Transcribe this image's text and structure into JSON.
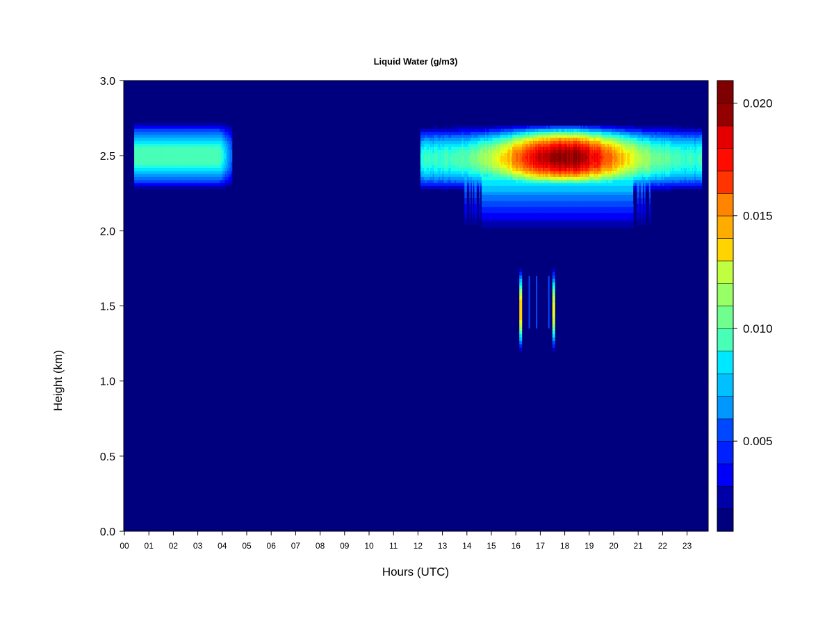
{
  "chart_data": {
    "type": "heatmap",
    "title": "Liquid Water (g/m3)",
    "xlabel": "Hours (UTC)",
    "ylabel": "Height (km)",
    "x_ticks": [
      "00",
      "01",
      "02",
      "03",
      "04",
      "05",
      "06",
      "07",
      "08",
      "09",
      "10",
      "11",
      "12",
      "13",
      "14",
      "15",
      "16",
      "17",
      "18",
      "19",
      "20",
      "21",
      "22",
      "23"
    ],
    "y_ticks": [
      "0.0",
      "0.5",
      "1.0",
      "1.5",
      "2.0",
      "2.5",
      "3.0"
    ],
    "x_range": [
      0,
      24
    ],
    "y_range": [
      0.0,
      3.0
    ],
    "colorbar": {
      "ticks": [
        "0.005",
        "0.010",
        "0.015",
        "0.020"
      ],
      "tick_values": [
        0.005,
        0.01,
        0.015,
        0.02
      ],
      "range": [
        0.001,
        0.021
      ],
      "levels": 20,
      "colors": [
        "#00007F",
        "#0000A8",
        "#0000D0",
        "#0000F8",
        "#0020FF",
        "#0048FF",
        "#0070FF",
        "#0098FF",
        "#00C0FF",
        "#00E8FF",
        "#20FFDF",
        "#48FFB7",
        "#70FF8F",
        "#98FF67",
        "#C0FF3F",
        "#E8FF17",
        "#FFD400",
        "#FFAC00",
        "#FF8400",
        "#FF5C00",
        "#FF3400",
        "#FF0C00",
        "#E40000",
        "#BC0000",
        "#940000",
        "#7F0000"
      ]
    },
    "features": [
      {
        "name": "cloud layer early",
        "x": [
          0.4,
          4.4
        ],
        "y_center": 2.5,
        "y_half_width": 0.22,
        "peak": 0.01
      },
      {
        "name": "cloud layer afternoon",
        "x": [
          12.1,
          23.6
        ],
        "y_center": 2.5,
        "y_half_width": 0.22,
        "peak": 0.0205
      },
      {
        "name": "cloud base extension",
        "x": [
          13.9,
          21.5
        ],
        "y": [
          2.03,
          2.35
        ],
        "peak": 0.009
      },
      {
        "name": "streak 1",
        "x": 16.2,
        "y": [
          1.2,
          1.75
        ],
        "peak": 0.014
      },
      {
        "name": "streak 2",
        "x": 17.55,
        "y": [
          1.2,
          1.75
        ],
        "peak": 0.013
      }
    ]
  }
}
